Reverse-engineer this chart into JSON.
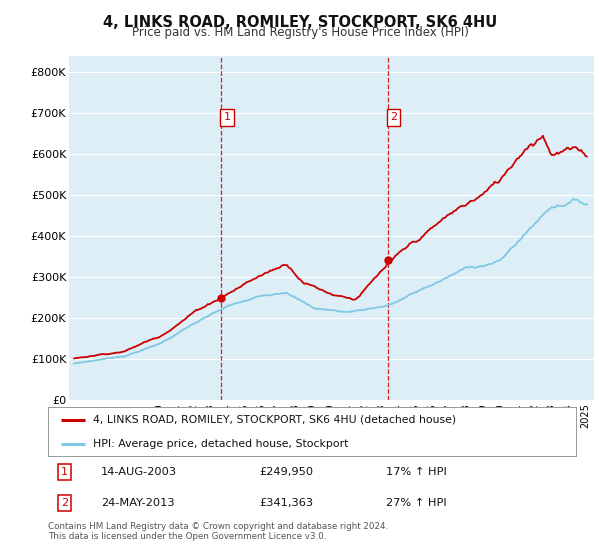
{
  "title": "4, LINKS ROAD, ROMILEY, STOCKPORT, SK6 4HU",
  "subtitle": "Price paid vs. HM Land Registry's House Price Index (HPI)",
  "ylim": [
    0,
    840000
  ],
  "yticks": [
    0,
    100000,
    200000,
    300000,
    400000,
    500000,
    600000,
    700000,
    800000
  ],
  "ytick_labels": [
    "£0",
    "£100K",
    "£200K",
    "£300K",
    "£400K",
    "£500K",
    "£600K",
    "£700K",
    "£800K"
  ],
  "sale1_year": 2003.62,
  "sale1_price": 249950,
  "sale1_label": "1",
  "sale1_text": "14-AUG-2003",
  "sale1_amount": "£249,950",
  "sale1_hpi": "17% ↑ HPI",
  "sale2_year": 2013.39,
  "sale2_price": 341363,
  "sale2_label": "2",
  "sale2_text": "24-MAY-2013",
  "sale2_amount": "£341,363",
  "sale2_hpi": "27% ↑ HPI",
  "legend1": "4, LINKS ROAD, ROMILEY, STOCKPORT, SK6 4HU (detached house)",
  "legend2": "HPI: Average price, detached house, Stockport",
  "footer": "Contains HM Land Registry data © Crown copyright and database right 2024.\nThis data is licensed under the Open Government Licence v3.0.",
  "hpi_color": "#7ec8e3",
  "price_color": "#cc0000",
  "bg_color": "#ddeef6",
  "grid_color": "#ffffff",
  "vline_color": "#cc0000",
  "xlim_left": 1994.7,
  "xlim_right": 2025.5
}
